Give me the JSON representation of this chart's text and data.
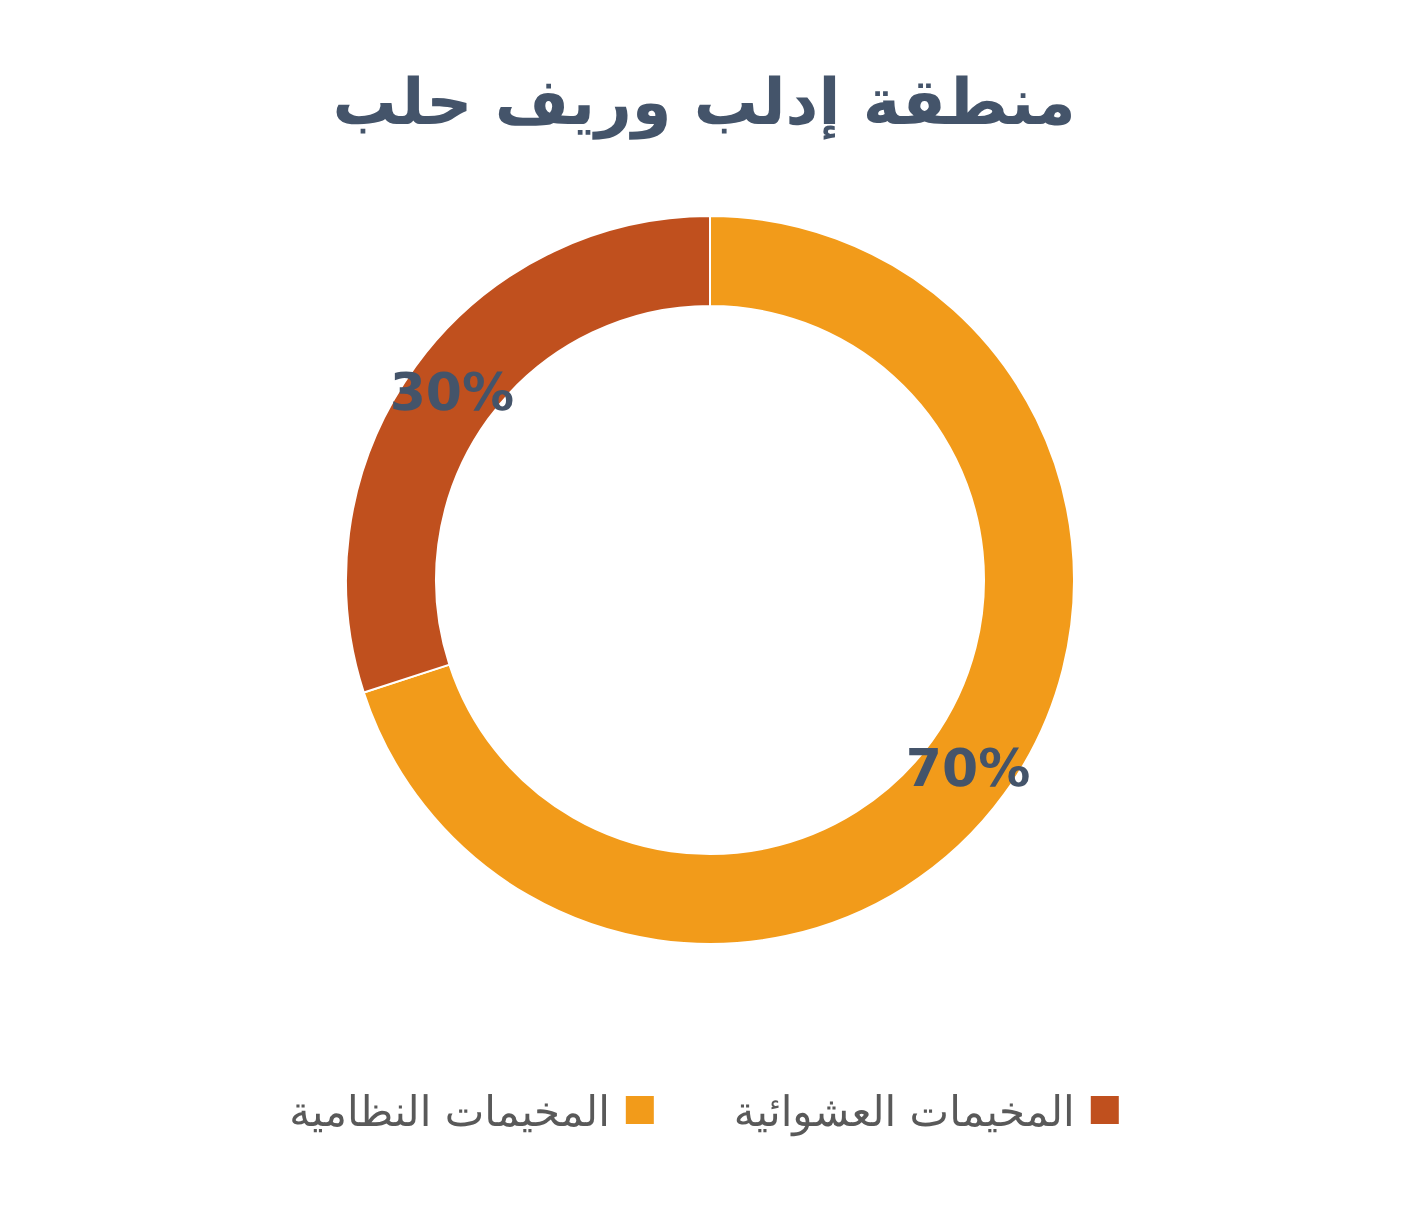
{
  "chart_data": {
    "type": "donut",
    "title": "منطقة إدلب وريف حلب",
    "categories": [
      "المخيمات النظامية",
      "المخيمات العشوائية"
    ],
    "values": [
      70,
      30
    ],
    "colors": [
      "#f29b1a",
      "#c0501e"
    ],
    "value_labels": [
      "70%",
      "30%"
    ],
    "legend": "bottom"
  }
}
